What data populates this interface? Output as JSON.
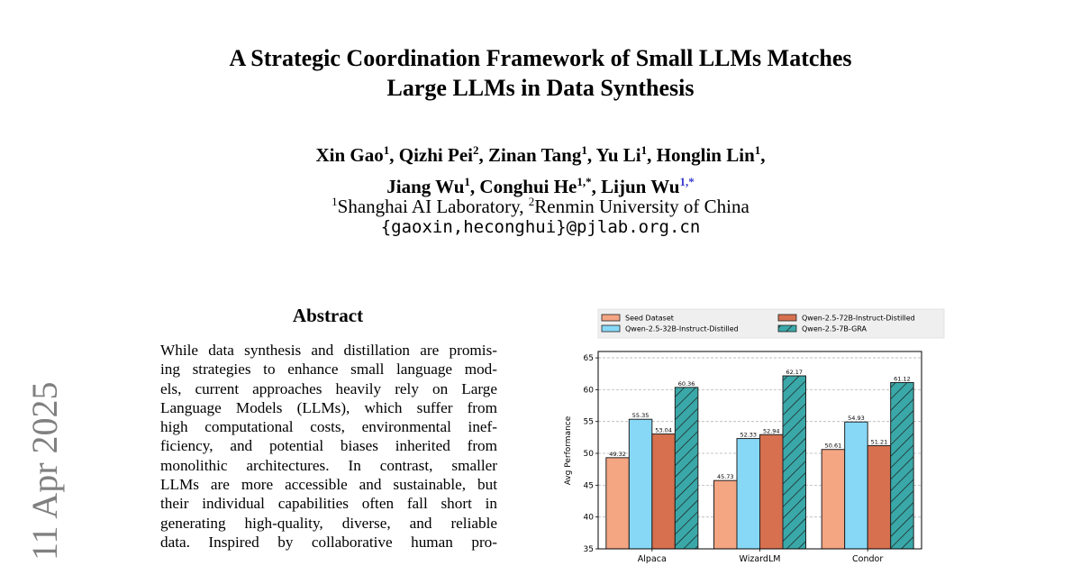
{
  "paper": {
    "title_line1": "A Strategic Coordination Framework of Small LLMs Matches",
    "title_line2": "Large LLMs in Data Synthesis",
    "authors": [
      {
        "name": "Xin Gao",
        "sup": "1",
        "sep": ", "
      },
      {
        "name": "Qizhi Pei",
        "sup": "2",
        "sep": ", "
      },
      {
        "name": "Zinan Tang",
        "sup": "1",
        "sep": ", "
      },
      {
        "name": "Yu Li",
        "sup": "1",
        "sep": ", "
      },
      {
        "name": "Honglin Lin",
        "sup": "1",
        "sep": ","
      },
      {
        "name": "Jiang Wu",
        "sup": "1",
        "sep": ", "
      },
      {
        "name": "Conghui He",
        "sup": "1,*",
        "sep": ", "
      },
      {
        "name": "Lijun Wu",
        "sup": "1,*",
        "sep": ""
      }
    ],
    "affil_1_sup": "1",
    "affil_1": "Shanghai AI Laboratory, ",
    "affil_2_sup": "2",
    "affil_2": "Renmin University of China",
    "email": "{gaoxin,heconghui}@pjlab.org.cn",
    "arxiv_date": "11 Apr 2025"
  },
  "abstract": {
    "heading": "Abstract",
    "lines": [
      "While data synthesis and distillation are promis-",
      "ing strategies to enhance small language mod-",
      "els, current approaches heavily rely on Large",
      "Language Models (LLMs), which suffer from",
      "high computational costs, environmental inef-",
      "ficiency, and potential biases inherited from",
      "monolithic architectures.  In contrast, smaller",
      "LLMs are more accessible and sustainable, but",
      "their individual capabilities often fall short in",
      "generating high-quality, diverse, and reliable",
      "data.  Inspired by collaborative human pro-"
    ]
  },
  "chart_data": {
    "type": "bar",
    "categories": [
      "Alpaca",
      "WizardLM",
      "Condor"
    ],
    "ylabel": "Avg Performance",
    "xlabel": "",
    "ylim": [
      35,
      66
    ],
    "yticks": [
      35,
      40,
      45,
      50,
      55,
      60,
      65
    ],
    "grid": "horizontal dashed",
    "legend_position": "top",
    "series": [
      {
        "name": "Seed Dataset",
        "values": [
          49.32,
          45.73,
          50.61
        ],
        "labels": [
          "49.32",
          "45.73",
          "50.61"
        ],
        "color": "#f4a582",
        "hatch": false
      },
      {
        "name": "Qwen-2.5-32B-Instruct-Distilled",
        "values": [
          55.35,
          52.33,
          54.93
        ],
        "labels": [
          "55.35",
          "52.33",
          "54.93"
        ],
        "color": "#87d8f7",
        "hatch": false
      },
      {
        "name": "Qwen-2.5-72B-Instruct-Distilled",
        "values": [
          53.04,
          52.94,
          51.21
        ],
        "labels": [
          "53.04",
          "52.94",
          "51.21"
        ],
        "color": "#d6704f",
        "hatch": false
      },
      {
        "name": "Qwen-2.5-7B-GRA",
        "values": [
          60.36,
          62.17,
          61.12
        ],
        "labels": [
          "60.36",
          "62.17",
          "61.12"
        ],
        "color": "#3aa8a8",
        "hatch": true
      }
    ]
  }
}
